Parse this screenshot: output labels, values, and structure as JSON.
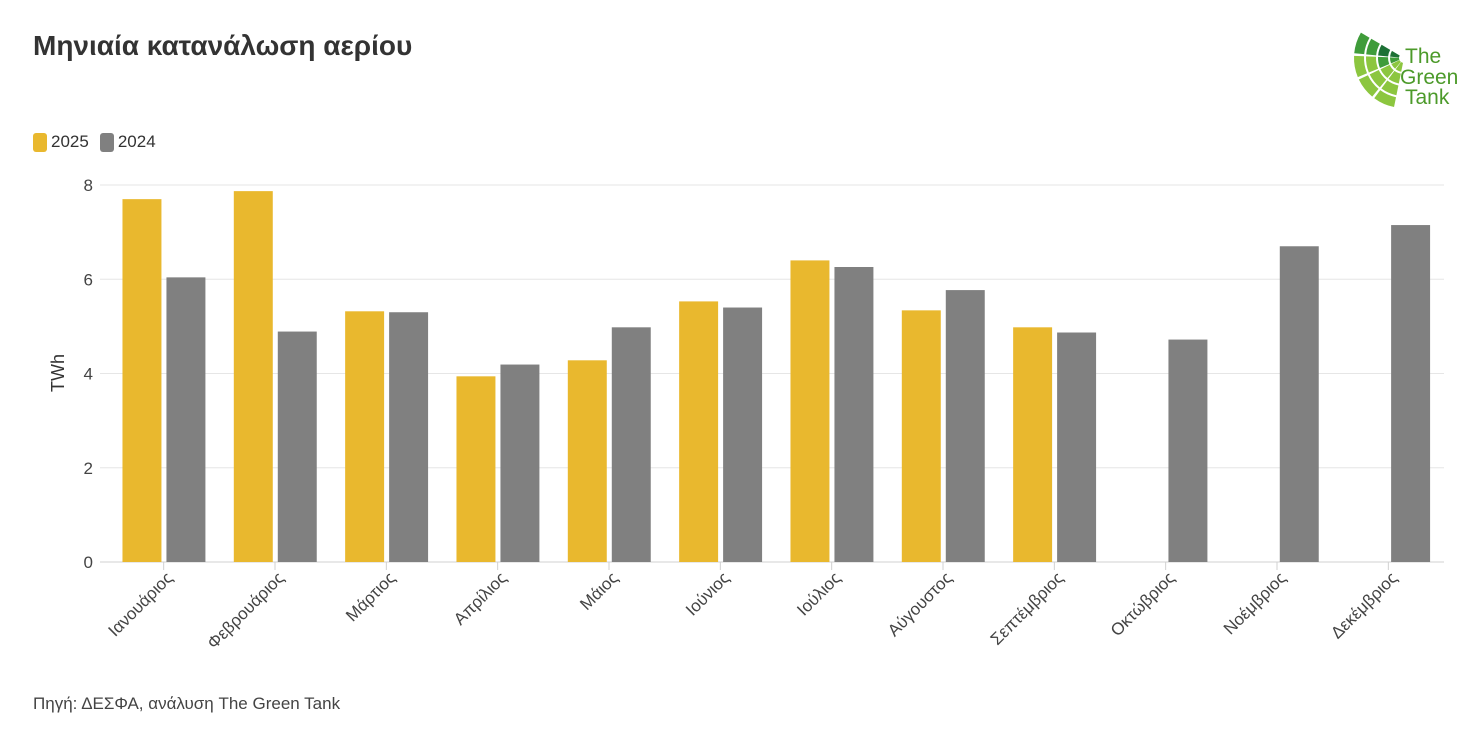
{
  "source": "Πηγή: ΔΕΣΦΑ, ανάλυση The Green Tank",
  "logo": {
    "lines": [
      "The",
      "Green",
      "Tank"
    ],
    "text_color": "#4c9a2a",
    "dark_green": "#1d7035",
    "mid_green": "#3f9c3a",
    "light_green": "#8cc63f"
  },
  "chart_data": {
    "type": "bar",
    "title": "Μηνιαία κατανάλωση αερίου",
    "xlabel": "",
    "ylabel": "TWh",
    "ylim": [
      0,
      8
    ],
    "yticks": [
      0,
      2,
      4,
      6,
      8
    ],
    "grid": true,
    "legend": "top-left",
    "categories": [
      "Ιανουάριος",
      "Φεβρουάριος",
      "Μάρτιος",
      "Απρίλιος",
      "Μάιος",
      "Ιούνιος",
      "Ιούλιος",
      "Αύγουστος",
      "Σεπτέμβριος",
      "Οκτώβριος",
      "Νοέμβριος",
      "Δεκέμβριος"
    ],
    "series": [
      {
        "name": "2025",
        "color": "#E9B82E",
        "values": [
          7.7,
          7.87,
          5.32,
          3.94,
          4.28,
          5.53,
          6.4,
          5.34,
          4.98,
          null,
          null,
          null
        ]
      },
      {
        "name": "2024",
        "color": "#808080",
        "values": [
          6.04,
          4.89,
          5.3,
          4.19,
          4.98,
          5.4,
          6.26,
          5.77,
          4.87,
          4.72,
          6.7,
          7.15
        ]
      }
    ]
  }
}
